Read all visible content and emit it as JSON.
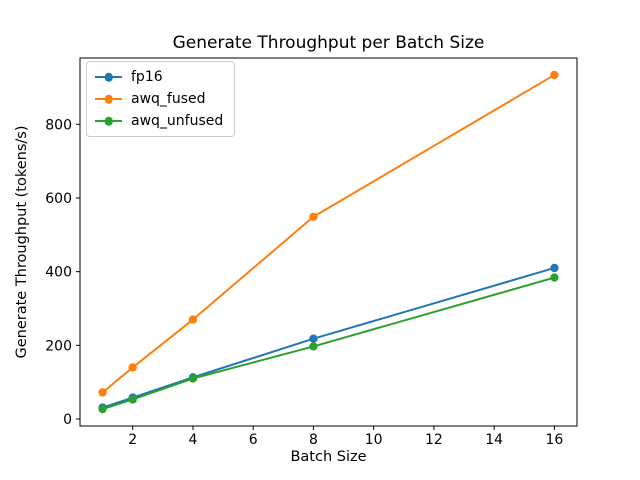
{
  "chart_data": {
    "type": "line",
    "title": "Generate Throughput per Batch Size",
    "xlabel": "Batch Size",
    "ylabel": "Generate Throughput (tokens/s)",
    "x": [
      1,
      2,
      4,
      8,
      16
    ],
    "series": [
      {
        "name": "fp16",
        "color": "#1f77b4",
        "values": [
          31,
          58,
          113,
          218,
          410
        ]
      },
      {
        "name": "awq_fused",
        "color": "#ff7f0e",
        "values": [
          72,
          140,
          270,
          549,
          934
        ]
      },
      {
        "name": "awq_unfused",
        "color": "#2ca02c",
        "values": [
          27,
          53,
          110,
          197,
          384
        ]
      }
    ],
    "xticks": [
      2,
      4,
      6,
      8,
      10,
      12,
      14,
      16
    ],
    "yticks": [
      0,
      200,
      400,
      600,
      800
    ],
    "xlim": [
      0.25,
      16.75
    ],
    "ylim": [
      -19,
      980
    ],
    "grid": false,
    "legend_position": "upper left",
    "marker": "o",
    "background_color": "#ffffff",
    "spine_color": "#000000"
  }
}
